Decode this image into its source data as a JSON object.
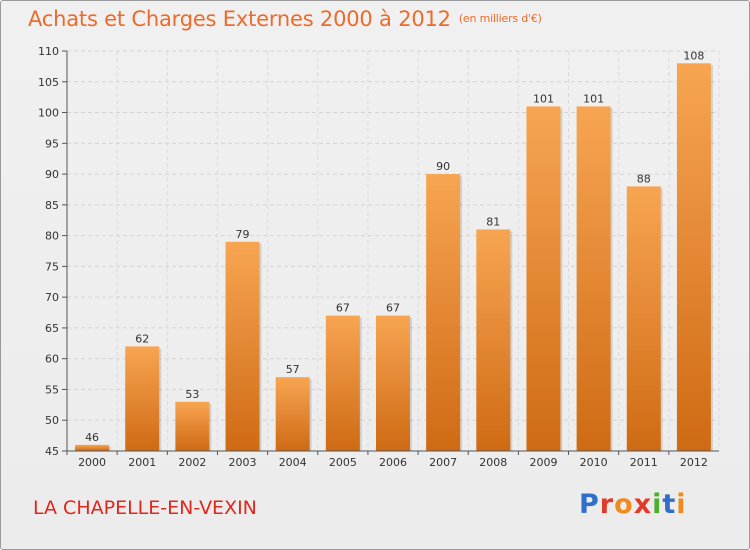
{
  "header": {
    "title": "Achats et Charges Externes 2000 à 2012",
    "unit": "(en milliers d'€)"
  },
  "footer": {
    "commune": "LA CHAPELLE-EN-VEXIN",
    "logo_text": "Proxiti",
    "logo_colors": [
      "#2f6fc9",
      "#e23a2a",
      "#f08a1c",
      "#e23a2a",
      "#4caf2a",
      "#2f6fc9",
      "#f08a1c"
    ]
  },
  "colors": {
    "bar_top": "#f7a552",
    "bar_bottom": "#cf6a14",
    "accent": "#ec6b2b"
  },
  "chart_data": {
    "type": "bar",
    "title": "Achats et Charges Externes 2000 à 2012",
    "xlabel": "",
    "ylabel": "",
    "categories": [
      "2000",
      "2001",
      "2002",
      "2003",
      "2004",
      "2005",
      "2006",
      "2007",
      "2008",
      "2009",
      "2010",
      "2011",
      "2012"
    ],
    "values": [
      46,
      62,
      53,
      79,
      57,
      67,
      67,
      90,
      81,
      101,
      101,
      88,
      108
    ],
    "ylim": [
      45,
      110
    ],
    "yticks": [
      45,
      50,
      55,
      60,
      65,
      70,
      75,
      80,
      85,
      90,
      95,
      100,
      105,
      110
    ],
    "grid": true,
    "data_labels": true
  }
}
